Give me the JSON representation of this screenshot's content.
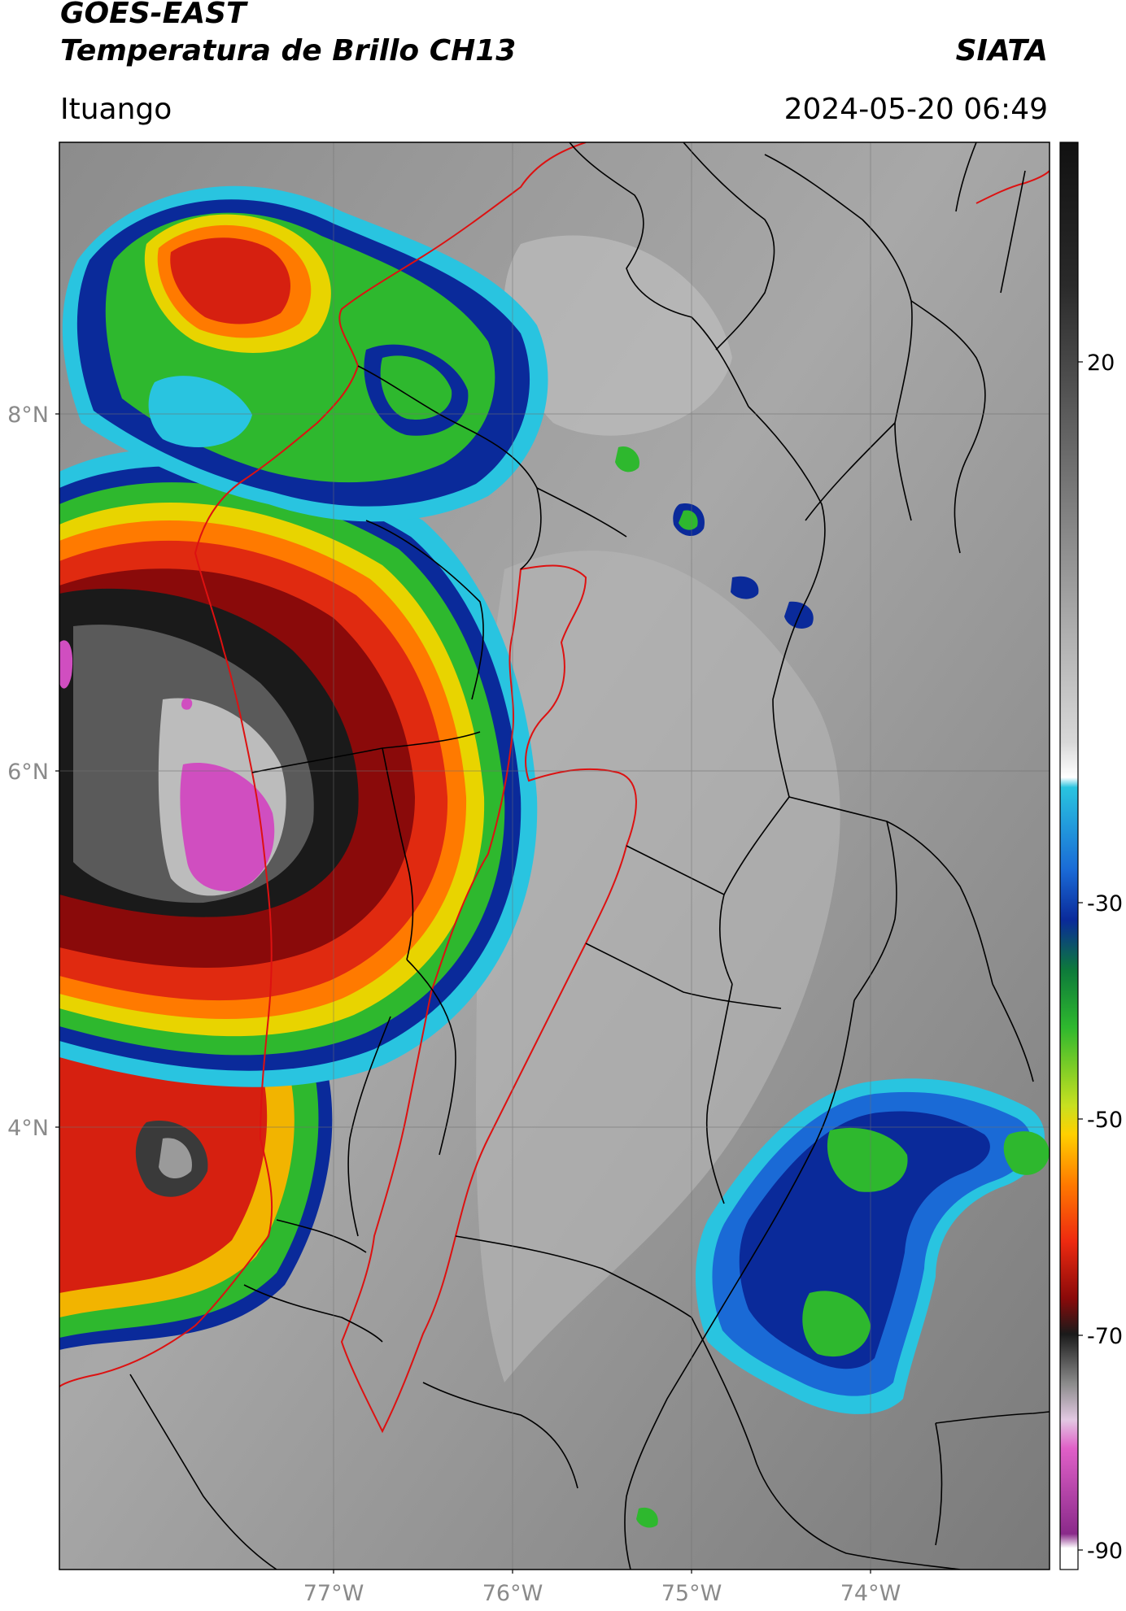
{
  "header": {
    "line1": "GOES-EAST",
    "line2": "Temperatura de Brillo CH13",
    "organization": "SIATA",
    "location": "Ituango",
    "timestamp": "2024-05-20 06:49"
  },
  "axes": {
    "lon_ticks": [
      "77°W",
      "76°W",
      "75°W",
      "74°W"
    ],
    "lat_ticks": [
      "8°N",
      "6°N",
      "4°N"
    ]
  },
  "colorbar": {
    "ticks": [
      "20",
      "-30",
      "-50",
      "-70",
      "-90"
    ]
  },
  "colors": {
    "boundary_country": "#dd1111",
    "boundary_region": "#000000",
    "cloud_cold_magenta": "#cc55cc",
    "cloud_red": "#d62010",
    "cloud_green": "#2eb82e",
    "cloud_blue": "#0a2a9a"
  }
}
